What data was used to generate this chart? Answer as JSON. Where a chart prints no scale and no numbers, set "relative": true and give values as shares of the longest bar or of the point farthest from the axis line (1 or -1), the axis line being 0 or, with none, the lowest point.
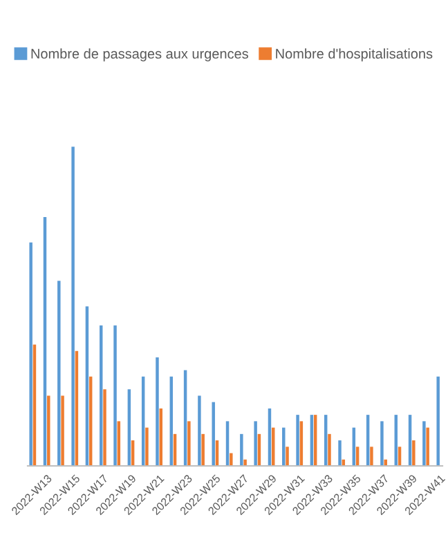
{
  "chart_data": {
    "type": "bar",
    "relative": true,
    "legend": "top",
    "categories": [
      null,
      "2022-W13",
      null,
      "2022-W15",
      null,
      "2022-W17",
      null,
      "2022-W19",
      null,
      "2022-W21",
      null,
      "2022-W23",
      null,
      "2022-W25",
      null,
      "2022-W27",
      null,
      "2022-W29",
      null,
      "2022-W31",
      null,
      "2022-W33",
      null,
      "2022-W35",
      null,
      "2022-W37",
      null,
      "2022-W39",
      null,
      "2022-W41"
    ],
    "series": [
      {
        "name": "Nombre de passages aux urgences",
        "color": "#5b9bd5",
        "values": [
          0.7,
          0.78,
          0.58,
          1,
          0.5,
          0.44,
          0.44,
          0.24,
          0.28,
          0.34,
          0.28,
          0.3,
          0.22,
          0.2,
          0.14,
          0.1,
          0.14,
          0.18,
          0.12,
          0.16,
          0.16,
          0.16,
          0.08,
          0.12,
          0.16,
          0.14,
          0.16,
          0.16,
          0.14,
          0.28
        ]
      },
      {
        "name": "Nombre d'hospitalisations",
        "color": "#ed7d31",
        "values": [
          0.38,
          0.22,
          0.22,
          0.36,
          0.28,
          0.24,
          0.14,
          0.08,
          0.12,
          0.18,
          0.1,
          0.14,
          0.1,
          0.08,
          0.04,
          0.02,
          0.1,
          0.12,
          0.06,
          0.14,
          0.16,
          0.1,
          0.02,
          0.06,
          0.06,
          0.02,
          0.06,
          0.08,
          0.12,
          null
        ]
      }
    ]
  }
}
